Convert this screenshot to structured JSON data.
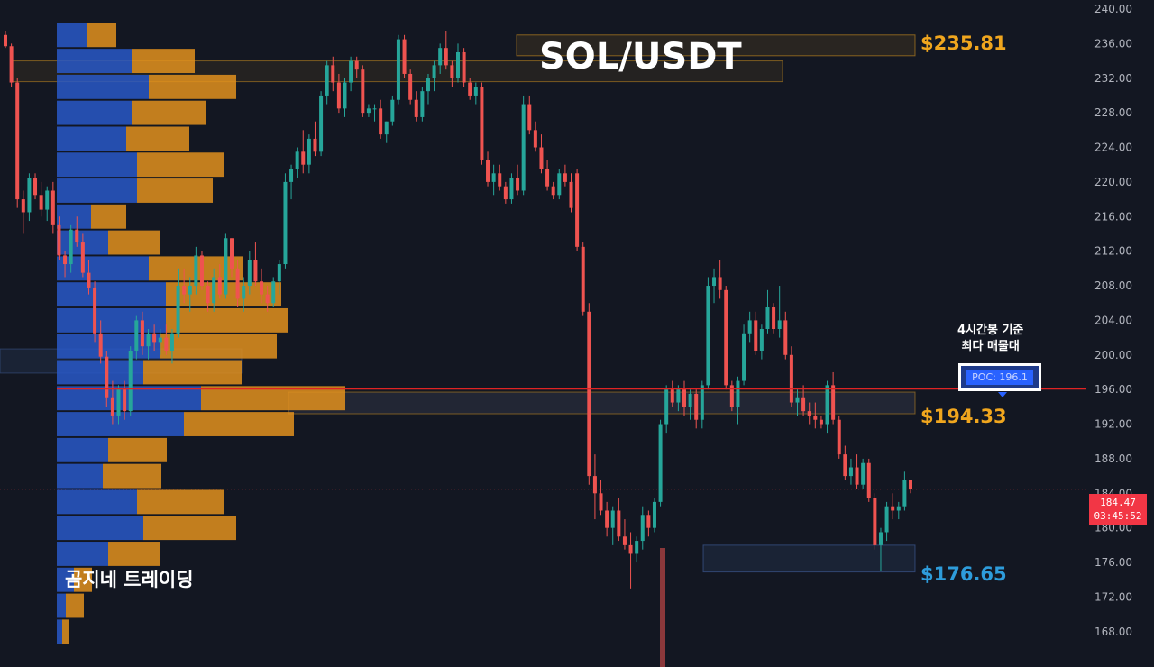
{
  "title": "SOL/USDT",
  "watermark": "곰지네 트레이딩",
  "poc": {
    "note_line1": "4시간봉 기준",
    "note_line2": "최다 매물대",
    "label": "POC: 196.1",
    "price": 196.1
  },
  "levels": [
    {
      "label": "$235.81",
      "price": 235.81,
      "color": "#f0a61e"
    },
    {
      "label": "$194.33",
      "price": 194.33,
      "color": "#f0a61e"
    },
    {
      "label": "$176.65",
      "price": 176.65,
      "color": "#2e9cdb"
    }
  ],
  "last_price": {
    "value": "184.47",
    "countdown": "03:45:52"
  },
  "colors": {
    "up": "#26a69a",
    "down": "#ef5350",
    "background": "#131722",
    "vp_buy": "#2958c7",
    "vp_sell": "#e2901d",
    "poc_line": "#e02424"
  },
  "chart_data": {
    "type": "candlestick",
    "y_axis": {
      "min": 166,
      "max": 240,
      "ticks": [
        "240.00",
        "236.00",
        "232.00",
        "228.00",
        "224.00",
        "220.00",
        "216.00",
        "212.00",
        "208.00",
        "204.00",
        "200.00",
        "196.00",
        "192.00",
        "188.00",
        "184.00",
        "180.00",
        "176.00",
        "172.00",
        "168.00"
      ]
    },
    "grid": false,
    "candles": [
      [
        237.0,
        237.5,
        235.5,
        235.7
      ],
      [
        235.7,
        236.0,
        231.0,
        231.5
      ],
      [
        231.5,
        232.0,
        217.0,
        218.0
      ],
      [
        218.0,
        219.0,
        214.0,
        216.5
      ],
      [
        216.5,
        221.0,
        215.5,
        220.5
      ],
      [
        220.5,
        221.0,
        218.0,
        218.5
      ],
      [
        218.5,
        220.0,
        216.0,
        216.8
      ],
      [
        216.8,
        219.5,
        215.5,
        219.0
      ],
      [
        219.0,
        220.0,
        214.0,
        215.0
      ],
      [
        215.0,
        216.0,
        211.0,
        211.5
      ],
      [
        211.5,
        212.0,
        209.0,
        210.5
      ],
      [
        210.5,
        215.0,
        209.5,
        214.5
      ],
      [
        214.5,
        216.0,
        212.5,
        213.0
      ],
      [
        213.0,
        214.0,
        209.0,
        209.5
      ],
      [
        209.5,
        211.0,
        207.0,
        207.8
      ],
      [
        207.8,
        208.5,
        201.5,
        202.5
      ],
      [
        202.5,
        204.0,
        199.0,
        199.8
      ],
      [
        199.8,
        200.5,
        194.0,
        195.0
      ],
      [
        195.0,
        197.0,
        192.0,
        193.0
      ],
      [
        193.0,
        196.5,
        192.0,
        196.0
      ],
      [
        196.0,
        197.0,
        192.5,
        193.5
      ],
      [
        193.5,
        201.0,
        193.0,
        200.5
      ],
      [
        200.5,
        204.5,
        199.5,
        204.0
      ],
      [
        204.0,
        205.0,
        200.0,
        201.0
      ],
      [
        201.0,
        203.0,
        199.5,
        202.5
      ],
      [
        202.5,
        203.5,
        200.5,
        201.5
      ],
      [
        201.5,
        203.0,
        200.0,
        202.0
      ],
      [
        202.0,
        203.5,
        200.0,
        200.5
      ],
      [
        200.5,
        203.0,
        199.0,
        202.5
      ],
      [
        202.5,
        210.0,
        202.0,
        208.0
      ],
      [
        208.0,
        210.0,
        206.0,
        207.0
      ],
      [
        207.0,
        209.0,
        205.0,
        208.0
      ],
      [
        208.0,
        212.5,
        207.0,
        211.5
      ],
      [
        211.5,
        212.0,
        207.5,
        208.0
      ],
      [
        208.0,
        208.5,
        205.0,
        206.0
      ],
      [
        206.0,
        210.0,
        205.0,
        209.0
      ],
      [
        209.0,
        210.5,
        206.5,
        207.0
      ],
      [
        207.0,
        214.0,
        206.5,
        213.5
      ],
      [
        213.5,
        213.5,
        209.0,
        210.0
      ],
      [
        210.0,
        211.0,
        205.5,
        206.5
      ],
      [
        206.5,
        209.0,
        205.0,
        208.0
      ],
      [
        208.0,
        212.0,
        207.0,
        211.0
      ],
      [
        211.0,
        213.0,
        208.0,
        208.5
      ],
      [
        208.5,
        210.0,
        206.0,
        207.0
      ],
      [
        207.0,
        208.0,
        205.0,
        206.0
      ],
      [
        206.0,
        209.0,
        205.5,
        208.5
      ],
      [
        208.5,
        211.0,
        207.0,
        210.5
      ],
      [
        210.5,
        221.0,
        210.0,
        220.0
      ],
      [
        220.0,
        222.0,
        218.0,
        221.5
      ],
      [
        221.5,
        224.0,
        220.5,
        223.5
      ],
      [
        223.5,
        226.0,
        221.0,
        222.0
      ],
      [
        222.0,
        225.5,
        221.0,
        225.0
      ],
      [
        225.0,
        227.0,
        223.0,
        223.5
      ],
      [
        223.5,
        230.5,
        223.0,
        230.0
      ],
      [
        230.0,
        234.0,
        229.0,
        233.5
      ],
      [
        233.5,
        234.5,
        230.5,
        231.5
      ],
      [
        231.5,
        232.5,
        228.0,
        228.5
      ],
      [
        228.5,
        232.0,
        227.5,
        231.5
      ],
      [
        231.5,
        234.5,
        230.5,
        234.0
      ],
      [
        234.0,
        234.5,
        232.0,
        233.0
      ],
      [
        233.0,
        233.5,
        227.5,
        228.0
      ],
      [
        228.0,
        229.0,
        227.5,
        228.5
      ],
      [
        228.5,
        229.0,
        227.0,
        228.5
      ],
      [
        228.5,
        229.5,
        225.0,
        225.5
      ],
      [
        225.5,
        227.0,
        224.5,
        227.0
      ],
      [
        227.0,
        230.0,
        226.5,
        229.5
      ],
      [
        229.5,
        237.0,
        229.0,
        236.5
      ],
      [
        236.5,
        237.0,
        232.0,
        232.5
      ],
      [
        232.5,
        233.0,
        229.0,
        229.5
      ],
      [
        229.5,
        230.5,
        227.0,
        227.5
      ],
      [
        227.5,
        231.0,
        227.0,
        230.5
      ],
      [
        230.5,
        232.5,
        229.0,
        232.0
      ],
      [
        232.0,
        234.0,
        230.5,
        233.5
      ],
      [
        233.5,
        236.0,
        232.5,
        235.5
      ],
      [
        235.5,
        237.5,
        233.0,
        233.5
      ],
      [
        233.5,
        234.0,
        231.0,
        232.0
      ],
      [
        232.0,
        236.0,
        231.5,
        235.0
      ],
      [
        235.0,
        235.5,
        231.0,
        231.5
      ],
      [
        231.5,
        232.0,
        229.5,
        230.0
      ],
      [
        230.0,
        231.5,
        229.0,
        231.0
      ],
      [
        231.0,
        231.5,
        222.0,
        222.5
      ],
      [
        222.5,
        223.5,
        219.5,
        220.0
      ],
      [
        220.0,
        222.0,
        218.5,
        221.0
      ],
      [
        221.0,
        222.0,
        219.0,
        219.5
      ],
      [
        219.5,
        220.0,
        217.5,
        218.0
      ],
      [
        218.0,
        221.0,
        217.5,
        220.5
      ],
      [
        220.5,
        222.0,
        218.5,
        219.0
      ],
      [
        219.0,
        230.0,
        218.5,
        229.0
      ],
      [
        229.0,
        230.0,
        225.5,
        226.0
      ],
      [
        226.0,
        227.0,
        223.5,
        224.0
      ],
      [
        224.0,
        225.5,
        221.0,
        221.5
      ],
      [
        221.5,
        222.5,
        219.0,
        219.5
      ],
      [
        219.5,
        220.0,
        218.0,
        218.5
      ],
      [
        218.5,
        221.5,
        218.0,
        221.0
      ],
      [
        221.0,
        222.0,
        219.5,
        220.0
      ],
      [
        220.0,
        221.0,
        216.5,
        217.0
      ],
      [
        221.0,
        221.5,
        212.0,
        212.5
      ],
      [
        212.5,
        213.0,
        204.5,
        205.0
      ],
      [
        205.0,
        206.0,
        185.0,
        186.0
      ],
      [
        186.0,
        188.5,
        181.0,
        184.0
      ],
      [
        184.0,
        185.5,
        181.5,
        182.0
      ],
      [
        182.0,
        183.0,
        179.0,
        180.0
      ],
      [
        180.0,
        182.5,
        178.0,
        182.0
      ],
      [
        182.0,
        183.5,
        178.5,
        179.0
      ],
      [
        179.0,
        181.0,
        177.5,
        178.0
      ],
      [
        178.0,
        179.5,
        173.0,
        177.0
      ],
      [
        177.0,
        179.0,
        176.0,
        178.5
      ],
      [
        178.5,
        182.5,
        177.5,
        181.5
      ],
      [
        181.5,
        182.0,
        179.0,
        180.0
      ],
      [
        180.0,
        183.5,
        179.5,
        183.0
      ],
      [
        183.0,
        192.5,
        182.5,
        192.0
      ],
      [
        192.0,
        196.5,
        191.0,
        196.0
      ],
      [
        196.0,
        197.0,
        194.0,
        194.5
      ],
      [
        194.5,
        196.5,
        193.5,
        196.0
      ],
      [
        196.0,
        197.0,
        193.0,
        194.0
      ],
      [
        194.0,
        196.0,
        192.5,
        195.5
      ],
      [
        195.5,
        196.0,
        191.5,
        192.5
      ],
      [
        192.5,
        197.0,
        191.5,
        196.5
      ],
      [
        196.5,
        209.0,
        196.0,
        208.0
      ],
      [
        208.0,
        210.0,
        206.0,
        209.0
      ],
      [
        209.0,
        211.0,
        206.5,
        207.5
      ],
      [
        207.5,
        208.0,
        196.0,
        196.5
      ],
      [
        196.5,
        197.0,
        193.5,
        194.0
      ],
      [
        194.0,
        197.5,
        192.0,
        197.0
      ],
      [
        197.0,
        203.5,
        196.5,
        202.5
      ],
      [
        202.5,
        205.0,
        201.5,
        204.0
      ],
      [
        204.0,
        205.0,
        200.0,
        200.5
      ],
      [
        200.5,
        203.5,
        199.5,
        203.0
      ],
      [
        203.0,
        207.5,
        202.5,
        205.5
      ],
      [
        205.5,
        206.0,
        202.5,
        203.0
      ],
      [
        203.0,
        208.0,
        202.0,
        204.0
      ],
      [
        204.0,
        205.0,
        199.5,
        200.0
      ],
      [
        200.0,
        201.0,
        194.0,
        194.5
      ],
      [
        194.5,
        196.0,
        193.0,
        195.0
      ],
      [
        195.0,
        196.5,
        193.0,
        193.5
      ],
      [
        193.5,
        194.5,
        192.0,
        193.0
      ],
      [
        193.0,
        194.5,
        191.5,
        192.5
      ],
      [
        192.5,
        193.0,
        191.5,
        192.0
      ],
      [
        192.0,
        197.0,
        191.0,
        196.5
      ],
      [
        196.5,
        198.0,
        192.0,
        192.5
      ],
      [
        192.5,
        193.0,
        188.0,
        188.5
      ],
      [
        188.5,
        189.5,
        185.5,
        186.0
      ],
      [
        186.0,
        188.0,
        185.0,
        187.0
      ],
      [
        187.0,
        188.5,
        184.5,
        185.0
      ],
      [
        185.0,
        188.0,
        184.5,
        187.5
      ],
      [
        187.5,
        188.0,
        183.0,
        183.5
      ],
      [
        183.5,
        184.0,
        177.5,
        178.0
      ],
      [
        178.0,
        180.0,
        175.0,
        179.5
      ],
      [
        179.5,
        183.0,
        178.5,
        182.5
      ],
      [
        182.5,
        184.0,
        181.0,
        182.0
      ],
      [
        182.0,
        183.0,
        181.0,
        182.5
      ],
      [
        182.5,
        186.5,
        182.0,
        185.5
      ],
      [
        185.5,
        185.5,
        184.0,
        184.47
      ]
    ],
    "volume_profile": [
      {
        "price": 237.0,
        "buy": 33,
        "sell": 33
      },
      {
        "price": 234.0,
        "buy": 83,
        "sell": 70
      },
      {
        "price": 231.0,
        "buy": 102,
        "sell": 97
      },
      {
        "price": 228.0,
        "buy": 83,
        "sell": 83
      },
      {
        "price": 225.0,
        "buy": 77,
        "sell": 70
      },
      {
        "price": 222.0,
        "buy": 89,
        "sell": 97
      },
      {
        "price": 219.0,
        "buy": 89,
        "sell": 84
      },
      {
        "price": 216.0,
        "buy": 38,
        "sell": 39
      },
      {
        "price": 213.0,
        "buy": 57,
        "sell": 58
      },
      {
        "price": 210.0,
        "buy": 102,
        "sell": 104
      },
      {
        "price": 207.0,
        "buy": 121,
        "sell": 128
      },
      {
        "price": 204.0,
        "buy": 121,
        "sell": 135
      },
      {
        "price": 201.0,
        "buy": 115,
        "sell": 129
      },
      {
        "price": 198.0,
        "buy": 96,
        "sell": 109
      },
      {
        "price": 195.0,
        "buy": 160,
        "sell": 160
      },
      {
        "price": 192.0,
        "buy": 141,
        "sell": 122
      },
      {
        "price": 189.0,
        "buy": 57,
        "sell": 65
      },
      {
        "price": 186.0,
        "buy": 51,
        "sell": 65
      },
      {
        "price": 183.0,
        "buy": 89,
        "sell": 97
      },
      {
        "price": 180.0,
        "buy": 96,
        "sell": 103
      },
      {
        "price": 177.0,
        "buy": 57,
        "sell": 58
      },
      {
        "price": 174.0,
        "buy": 19,
        "sell": 20
      },
      {
        "price": 171.0,
        "buy": 10,
        "sell": 20
      },
      {
        "price": 168.0,
        "buy": 6,
        "sell": 7
      }
    ]
  }
}
